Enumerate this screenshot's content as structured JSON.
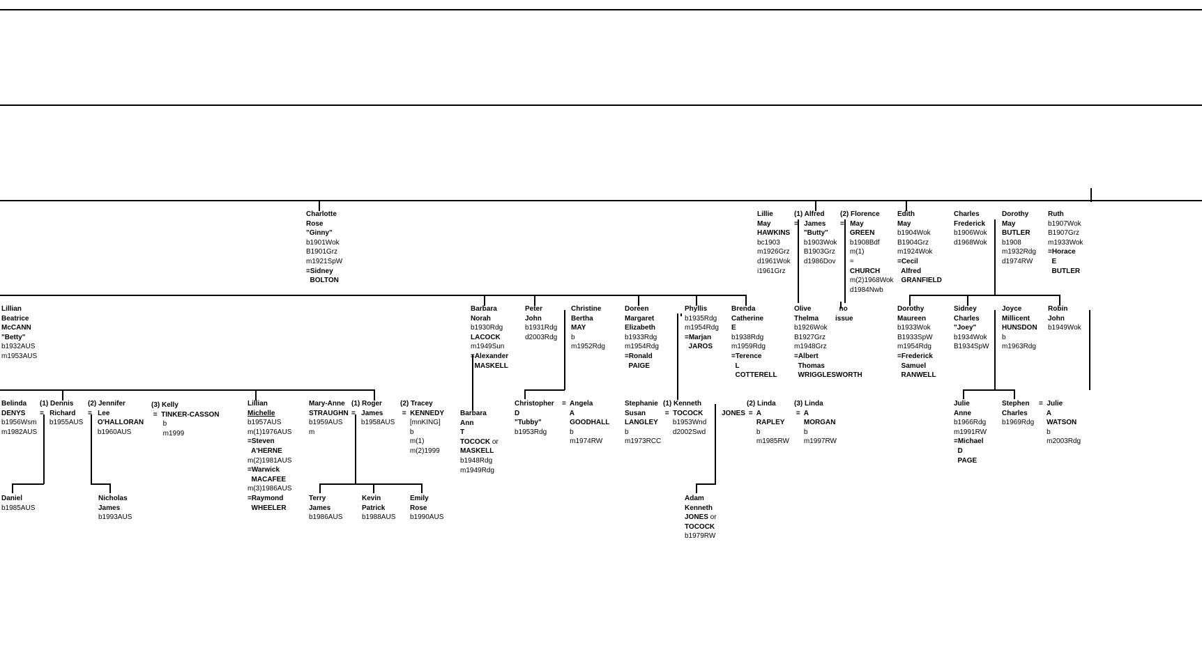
{
  "people": [
    {
      "id": "charlotte",
      "lines": [
        {
          "t": "Charlotte",
          "b": true
        },
        {
          "t": "Rose",
          "b": true
        },
        {
          "t": "\"Ginny\"",
          "b": true
        },
        {
          "t": "b1901Wok"
        },
        {
          "t": "B1901Grz"
        },
        {
          "t": "m1921SpW"
        },
        {
          "t": "=Sidney",
          "b": true
        },
        {
          "t": "  BOLTON",
          "b": true
        }
      ]
    },
    {
      "id": "lillie",
      "lines": [
        {
          "t": "Lillie",
          "b": true
        },
        {
          "t": "May",
          "b": true
        },
        {
          "t": "HAWKINS",
          "b": true
        },
        {
          "t": "bc1903"
        },
        {
          "t": "m1926Grz"
        },
        {
          "t": "d1961Wok"
        },
        {
          "t": "i1961Grz"
        }
      ]
    },
    {
      "id": "alfred",
      "lines": [
        {
          "t": "(1) Alfred",
          "b": true
        },
        {
          "t": "=   James",
          "b": true
        },
        {
          "t": "     \"Butty\"",
          "b": true
        },
        {
          "t": "     b1903Wok"
        },
        {
          "t": "     B1903Grz"
        },
        {
          "t": "     d1986Dov"
        }
      ]
    },
    {
      "id": "florence",
      "lines": [
        {
          "t": "(2) Florence",
          "b": true
        },
        {
          "t": "=   May",
          "b": true
        },
        {
          "t": "     GREEN",
          "b": true
        },
        {
          "t": "     b1908Bdf"
        },
        {
          "t": "     m(1)"
        },
        {
          "t": "     ="
        },
        {
          "t": "     CHURCH",
          "b": true
        },
        {
          "t": "     m(2)1968Wok"
        },
        {
          "t": "     d1984Nwb"
        }
      ]
    },
    {
      "id": "edith",
      "lines": [
        {
          "t": "Edith",
          "b": true
        },
        {
          "t": "May",
          "b": true
        },
        {
          "t": "b1904Wok"
        },
        {
          "t": "B1904Grz"
        },
        {
          "t": "m1924Wok"
        },
        {
          "t": "=Cecil",
          "b": true
        },
        {
          "t": "  Alfred",
          "b": true
        },
        {
          "t": "  GRANFIELD",
          "b": true
        }
      ]
    },
    {
      "id": "charlesf",
      "lines": [
        {
          "t": "Charles",
          "b": true
        },
        {
          "t": "Frederick",
          "b": true
        },
        {
          "t": "b1906Wok"
        },
        {
          "t": "d1968Wok"
        }
      ]
    },
    {
      "id": "dorothymay",
      "lines": [
        {
          "t": "Dorothy",
          "b": true
        },
        {
          "t": "May",
          "b": true
        },
        {
          "t": "BUTLER",
          "b": true
        },
        {
          "t": "b1908"
        },
        {
          "t": "m1932Rdg"
        },
        {
          "t": "d1974RW"
        }
      ]
    },
    {
      "id": "ruth",
      "lines": [
        {
          "t": "Ruth",
          "b": true
        },
        {
          "t": "b1907Wok"
        },
        {
          "t": "B1907Grz"
        },
        {
          "t": "m1933Wok"
        },
        {
          "t": "=Horace",
          "b": true
        },
        {
          "t": "  E",
          "b": true
        },
        {
          "t": "  BUTLER",
          "b": true
        }
      ]
    },
    {
      "id": "lillianb",
      "lines": [
        {
          "t": "Lillian",
          "b": true
        },
        {
          "t": "Beatrice",
          "b": true
        },
        {
          "t": "McCANN",
          "b": true
        },
        {
          "t": "\"Betty\"",
          "b": true
        },
        {
          "t": "b1932AUS"
        },
        {
          "t": "m1953AUS"
        }
      ]
    },
    {
      "id": "barbara",
      "lines": [
        {
          "t": "Barbara",
          "b": true
        },
        {
          "t": "Norah",
          "b": true
        },
        {
          "t": "b1930Rdg"
        },
        {
          "t": "LACOCK",
          "b": true
        },
        {
          "t": "m1949Sun"
        },
        {
          "t": "=Alexander",
          "b": true
        },
        {
          "t": "  MASKELL",
          "b": true
        }
      ]
    },
    {
      "id": "peter",
      "lines": [
        {
          "t": "Peter",
          "b": true
        },
        {
          "t": "John",
          "b": true
        },
        {
          "t": "b1931Rdg"
        },
        {
          "t": "d2003Rdg"
        }
      ]
    },
    {
      "id": "christine",
      "lines": [
        {
          "t": "Christine",
          "b": true
        },
        {
          "t": "Bertha",
          "b": true
        },
        {
          "t": "MAY",
          "b": true
        },
        {
          "t": "b"
        },
        {
          "t": "m1952Rdg"
        }
      ]
    },
    {
      "id": "doreen",
      "lines": [
        {
          "t": "Doreen",
          "b": true
        },
        {
          "t": "Margaret",
          "b": true
        },
        {
          "t": "Elizabeth",
          "b": true
        },
        {
          "t": "b1933Rdg"
        },
        {
          "t": "m1954Rdg"
        },
        {
          "t": "=Ronald",
          "b": true
        },
        {
          "t": "  PAIGE",
          "b": true
        }
      ]
    },
    {
      "id": "phyllis",
      "lines": [
        {
          "t": "Phyllis",
          "b": true
        },
        {
          "t": "b1935Rdg"
        },
        {
          "t": "m1954Rdg"
        },
        {
          "t": "=Marjan",
          "b": true
        },
        {
          "t": "  JAROS",
          "b": true
        }
      ]
    },
    {
      "id": "brenda",
      "lines": [
        {
          "t": "Brenda",
          "b": true
        },
        {
          "t": "Catherine",
          "b": true
        },
        {
          "t": "E",
          "b": true
        },
        {
          "t": "b1938Rdg"
        },
        {
          "t": "m1959Rdg"
        },
        {
          "t": "=Terence",
          "b": true
        },
        {
          "t": "  L",
          "b": true
        },
        {
          "t": "  COTTERELL",
          "b": true
        }
      ]
    },
    {
      "id": "olive",
      "lines": [
        {
          "t": "Olive",
          "b": true
        },
        {
          "t": "Thelma",
          "b": true
        },
        {
          "t": "b1926Wok"
        },
        {
          "t": "B1927Grz"
        },
        {
          "t": "m1948Grz"
        },
        {
          "t": "=Albert",
          "b": true
        },
        {
          "t": "  Thomas",
          "b": true
        },
        {
          "t": "  WRIGGLESWORTH",
          "b": true
        }
      ]
    },
    {
      "id": "noissue",
      "lines": [
        {
          "t": "  no",
          "b": true
        },
        {
          "t": "issue",
          "b": true
        }
      ]
    },
    {
      "id": "dorothym",
      "lines": [
        {
          "t": "Dorothy",
          "b": true
        },
        {
          "t": "Maureen",
          "b": true
        },
        {
          "t": "b1933Wok"
        },
        {
          "t": "B1933SpW"
        },
        {
          "t": "m1954Rdg"
        },
        {
          "t": "=Frederick",
          "b": true
        },
        {
          "t": "  Samuel",
          "b": true
        },
        {
          "t": "  RANWELL",
          "b": true
        }
      ]
    },
    {
      "id": "sidney",
      "lines": [
        {
          "t": "Sidney",
          "b": true
        },
        {
          "t": "Charles",
          "b": true
        },
        {
          "t": "\"Joey\"",
          "b": true
        },
        {
          "t": "b1934Wok"
        },
        {
          "t": "B1934SpW"
        }
      ]
    },
    {
      "id": "joyce",
      "lines": [
        {
          "t": "Joyce",
          "b": true
        },
        {
          "t": "Millicent",
          "b": true
        },
        {
          "t": "HUNSDON",
          "b": true
        },
        {
          "t": "b"
        },
        {
          "t": "m1963Rdg"
        }
      ]
    },
    {
      "id": "robin",
      "lines": [
        {
          "t": "Robin",
          "b": true
        },
        {
          "t": "John",
          "b": true
        },
        {
          "t": "b1949Wok"
        }
      ]
    },
    {
      "id": "belinda",
      "lines": [
        {
          "t": "Belinda",
          "b": true
        },
        {
          "t": "DENYS",
          "b": true
        },
        {
          "t": "b1956Wsm"
        },
        {
          "t": "m1982AUS"
        }
      ]
    },
    {
      "id": "dennis",
      "lines": [
        {
          "t": "(1) Dennis",
          "b": true
        },
        {
          "t": "=   Richard",
          "b": true
        },
        {
          "t": "     b1955AUS"
        }
      ]
    },
    {
      "id": "jennifer",
      "lines": [
        {
          "t": "(2) Jennifer",
          "b": true
        },
        {
          "t": "=   Lee",
          "b": true
        },
        {
          "t": "     O'HALLORAN",
          "b": true
        },
        {
          "t": "     b1960AUS"
        }
      ]
    },
    {
      "id": "kelly",
      "lines": [
        {
          "t": "(3) Kelly",
          "b": true
        },
        {
          "t": " =  TINKER-CASSON",
          "b": true
        },
        {
          "t": "      b"
        },
        {
          "t": "      m1999"
        }
      ]
    },
    {
      "id": "lillianm",
      "lines": [
        {
          "t": "Lillian",
          "b": true
        },
        {
          "t": "Michelle",
          "b": true,
          "u": true
        },
        {
          "t": "b1957AUS"
        },
        {
          "t": "m(1)1976AUS"
        },
        {
          "t": "=Steven",
          "b": true
        },
        {
          "t": "  A'HERNE",
          "b": true
        },
        {
          "t": "m(2)1981AUS"
        },
        {
          "t": "=Warwick",
          "b": true
        },
        {
          "t": "  MACAFEE",
          "b": true
        },
        {
          "t": "m(3)1986AUS"
        },
        {
          "t": "=Raymond",
          "b": true
        },
        {
          "t": "  WHEELER",
          "b": true
        }
      ]
    },
    {
      "id": "maryanne",
      "lines": [
        {
          "t": "Mary-Anne",
          "b": true
        },
        {
          "t": "STRAUGHN",
          "b": true
        },
        {
          "t": "b1959AUS"
        },
        {
          "t": "m"
        }
      ]
    },
    {
      "id": "roger",
      "lines": [
        {
          "t": "(1) Roger",
          "b": true
        },
        {
          "t": "=   James",
          "b": true
        },
        {
          "t": "     b1958AUS"
        }
      ]
    },
    {
      "id": "tracey",
      "lines": [
        {
          "t": "(2) Tracey",
          "b": true
        },
        {
          "t": " =  KENNEDY",
          "b": true
        },
        {
          "t": "     [mnKING]"
        },
        {
          "t": "     b"
        },
        {
          "t": "     m(1)"
        },
        {
          "t": "     m(2)1999"
        }
      ]
    },
    {
      "id": "barbaraann",
      "lines": [
        {
          "t": "Barbara",
          "b": true
        },
        {
          "t": "Ann",
          "b": true
        },
        {
          "t": "T",
          "b": true
        },
        {
          "t": "TOCOCK",
          "b": true,
          "s": " or"
        },
        {
          "t": "MASKELL",
          "b": true
        },
        {
          "t": "b1948Rdg"
        },
        {
          "t": "m1949Rdg"
        }
      ]
    },
    {
      "id": "christopher",
      "lines": [
        {
          "t": "Christopher",
          "b": true
        },
        {
          "t": "D",
          "b": true
        },
        {
          "t": "\"Tubby\"",
          "b": true
        },
        {
          "t": "b1953Rdg"
        }
      ]
    },
    {
      "id": "angela",
      "lines": [
        {
          "t": "=  Angela",
          "b": true
        },
        {
          "t": "    A",
          "b": true
        },
        {
          "t": "    GOODHALL",
          "b": true
        },
        {
          "t": "    b"
        },
        {
          "t": "    m1974RW"
        }
      ]
    },
    {
      "id": "stephanie",
      "lines": [
        {
          "t": "Stephanie",
          "b": true
        },
        {
          "t": "Susan",
          "b": true
        },
        {
          "t": "LANGLEY",
          "b": true
        },
        {
          "t": "b"
        },
        {
          "t": "m1973RCC"
        }
      ]
    },
    {
      "id": "kenneth",
      "lines": [
        {
          "t": "(1) Kenneth",
          "b": true
        },
        {
          "t": " =  TOCOCK",
          "b": true
        },
        {
          "t": "     b1953Wnd"
        },
        {
          "t": "     d2002Swd"
        }
      ]
    },
    {
      "id": "jones",
      "lines": [
        {
          "t": "JONES",
          "b": true
        }
      ]
    },
    {
      "id": "linda1",
      "lines": [
        {
          "t": "(2) Linda",
          "b": true
        },
        {
          "t": " =  A",
          "b": true
        },
        {
          "t": "     RAPLEY",
          "b": true
        },
        {
          "t": "     b"
        },
        {
          "t": "     m1985RW"
        }
      ]
    },
    {
      "id": "linda2",
      "lines": [
        {
          "t": "(3) Linda",
          "b": true
        },
        {
          "t": " =  A",
          "b": true
        },
        {
          "t": "     MORGAN",
          "b": true
        },
        {
          "t": "     b"
        },
        {
          "t": "     m1997RW"
        }
      ]
    },
    {
      "id": "juliea",
      "lines": [
        {
          "t": "Julie",
          "b": true
        },
        {
          "t": "Anne",
          "b": true
        },
        {
          "t": "b1966Rdg"
        },
        {
          "t": "m1991RW"
        },
        {
          "t": "=Michael",
          "b": true
        },
        {
          "t": "  D",
          "b": true
        },
        {
          "t": "  PAGE",
          "b": true
        }
      ]
    },
    {
      "id": "stephen",
      "lines": [
        {
          "t": "Stephen",
          "b": true
        },
        {
          "t": "Charles",
          "b": true
        },
        {
          "t": "b1969Rdg"
        }
      ]
    },
    {
      "id": "juliew",
      "lines": [
        {
          "t": "=  Julie",
          "b": true
        },
        {
          "t": "    A",
          "b": true
        },
        {
          "t": "    WATSON",
          "b": true
        },
        {
          "t": "    b"
        },
        {
          "t": "    m2003Rdg"
        }
      ]
    },
    {
      "id": "daniel",
      "lines": [
        {
          "t": "Daniel",
          "b": true
        },
        {
          "t": "b1985AUS"
        }
      ]
    },
    {
      "id": "nicholas",
      "lines": [
        {
          "t": "Nicholas",
          "b": true
        },
        {
          "t": "James",
          "b": true
        },
        {
          "t": "b1993AUS"
        }
      ]
    },
    {
      "id": "terry",
      "lines": [
        {
          "t": "Terry",
          "b": true
        },
        {
          "t": "James",
          "b": true
        },
        {
          "t": "b1986AUS"
        }
      ]
    },
    {
      "id": "kevin",
      "lines": [
        {
          "t": "Kevin",
          "b": true
        },
        {
          "t": "Patrick",
          "b": true
        },
        {
          "t": "b1988AUS"
        }
      ]
    },
    {
      "id": "emily",
      "lines": [
        {
          "t": "Emily",
          "b": true
        },
        {
          "t": "Rose",
          "b": true
        },
        {
          "t": "b1990AUS"
        }
      ]
    },
    {
      "id": "adam",
      "lines": [
        {
          "t": "Adam",
          "b": true
        },
        {
          "t": "Kenneth",
          "b": true
        },
        {
          "t": "JONES",
          "b": true,
          "s": " or"
        },
        {
          "t": "TOCOCK",
          "b": true
        },
        {
          "t": "b1979RW"
        }
      ]
    }
  ]
}
